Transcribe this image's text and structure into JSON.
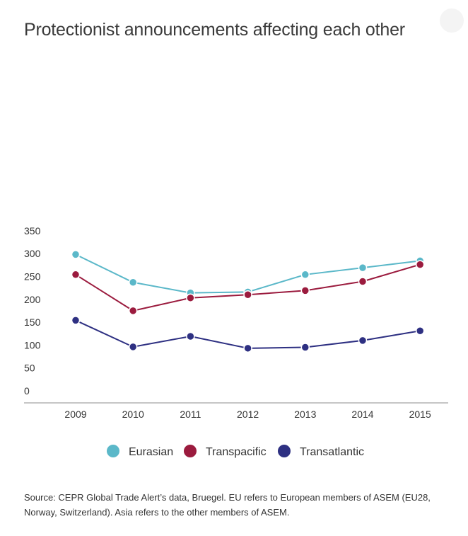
{
  "chart_data": {
    "type": "line",
    "title": "Protectionist announcements affecting each other",
    "categories": [
      "2009",
      "2010",
      "2011",
      "2012",
      "2013",
      "2014",
      "2015"
    ],
    "ylim": [
      0,
      350
    ],
    "yticks": [
      0,
      50,
      100,
      150,
      200,
      250,
      300,
      350
    ],
    "xlabel": "",
    "ylabel": "",
    "grid": false,
    "legend_position": "bottom",
    "series": [
      {
        "name": "Eurasian",
        "color": "#5bb8c9",
        "values": [
          309,
          248,
          225,
          227,
          265,
          280,
          295
        ]
      },
      {
        "name": "Transpacific",
        "color": "#9b1b3e",
        "values": [
          265,
          186,
          214,
          221,
          230,
          250,
          287
        ]
      },
      {
        "name": "Transatlantic",
        "color": "#2e3082",
        "values": [
          165,
          107,
          130,
          104,
          106,
          121,
          142
        ]
      }
    ],
    "source": "Source: CEPR Global Trade Alert’s data, Bruegel. EU refers to European members of ASEM (EU28, Norway, Switzerland). Asia refers to the other members of ASEM."
  }
}
